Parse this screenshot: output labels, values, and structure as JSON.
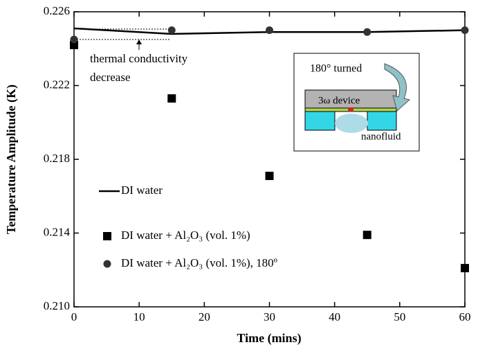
{
  "chart_data": {
    "type": "line",
    "x_label": "Time (mins)",
    "y_label": "Temperature Amplitude (K)",
    "x": [
      0,
      15,
      30,
      45,
      60
    ],
    "series": [
      {
        "name": "DI water",
        "color": "#000000",
        "marker": "line",
        "values": [
          0.2251,
          0.2248,
          0.2249,
          0.2249,
          0.225
        ]
      },
      {
        "name": "DI water + Al₂O₃ (vol. 1%)",
        "color": "#000000",
        "marker": "square",
        "values": [
          0.2242,
          0.2213,
          0.2171,
          0.2139,
          0.2121
        ]
      },
      {
        "name": "DI water + Al₂O₃ (vol. 1%), 180º",
        "color": "#333333",
        "marker": "circle",
        "values": [
          0.2245,
          0.225,
          0.225,
          0.2249,
          0.225
        ]
      }
    ],
    "xlim": [
      0,
      60
    ],
    "xticks": [
      0,
      10,
      20,
      30,
      40,
      50,
      60
    ],
    "ylim": [
      0.21,
      0.226
    ],
    "yticks": [
      {
        "value": 0.21,
        "label": "0.210"
      },
      0.214,
      0.218,
      0.222,
      0.226
    ],
    "annotations": [
      "thermal conductivity",
      "decrease"
    ],
    "inset": {
      "turned": "180° turned",
      "device": "3ω device",
      "fluid": "nanofluid"
    }
  }
}
